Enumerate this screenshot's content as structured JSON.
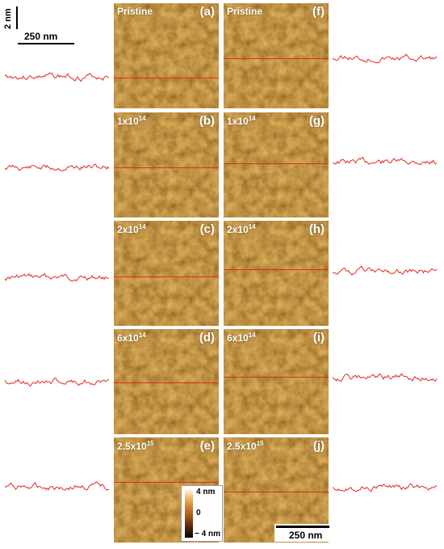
{
  "scale_bar_top": {
    "vertical_label": "2 nm",
    "horizontal_label": "250 nm"
  },
  "scale_bar_bottom": {
    "label": "250 nm"
  },
  "colorbar": {
    "max_label": "4 nm",
    "mid_label": "0",
    "min_label": "− 4 nm"
  },
  "left_column": [
    {
      "fluence_base": "Pristine",
      "fluence_exp": "",
      "letter": "(a)"
    },
    {
      "fluence_base": "1x10",
      "fluence_exp": "14",
      "letter": "(b)"
    },
    {
      "fluence_base": "2x10",
      "fluence_exp": "14",
      "letter": "(c)"
    },
    {
      "fluence_base": "6x10",
      "fluence_exp": "14",
      "letter": "(d)"
    },
    {
      "fluence_base": "2.5x10",
      "fluence_exp": "15",
      "letter": "(e)"
    }
  ],
  "right_column": [
    {
      "fluence_base": "Pristine",
      "fluence_exp": "",
      "letter": "(f)"
    },
    {
      "fluence_base": "1x10",
      "fluence_exp": "14",
      "letter": "(g)"
    },
    {
      "fluence_base": "2x10",
      "fluence_exp": "14",
      "letter": "(h)"
    },
    {
      "fluence_base": "6x10",
      "fluence_exp": "14",
      "letter": "(i)"
    },
    {
      "fluence_base": "2.5x10",
      "fluence_exp": "15",
      "letter": "(j)"
    }
  ],
  "colors": {
    "profile_line": "#e32b1e",
    "afm_base": "#8a4f12"
  }
}
